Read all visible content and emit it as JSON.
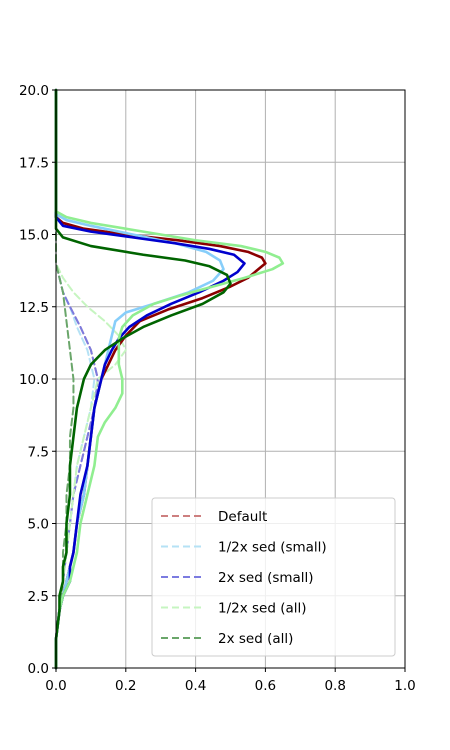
{
  "chart_data": {
    "type": "line",
    "title": "",
    "xlabel": "",
    "ylabel": "",
    "xlim": [
      0.0,
      1.0
    ],
    "ylim": [
      0.0,
      20.0
    ],
    "grid": true,
    "legend_placement": "lower-right",
    "x_ticks": [
      {
        "value": 0.0,
        "label": "0.0"
      },
      {
        "value": 0.2,
        "label": "0.2"
      },
      {
        "value": 0.4,
        "label": "0.4"
      },
      {
        "value": 0.6,
        "label": "0.6"
      },
      {
        "value": 0.8,
        "label": "0.8"
      },
      {
        "value": 1.0,
        "label": "1.0"
      }
    ],
    "y_ticks": [
      {
        "value": 0.0,
        "label": "0.0"
      },
      {
        "value": 2.5,
        "label": "2.5"
      },
      {
        "value": 5.0,
        "label": "5.0"
      },
      {
        "value": 7.5,
        "label": "7.5"
      },
      {
        "value": 10.0,
        "label": "10.0"
      },
      {
        "value": 12.5,
        "label": "12.5"
      },
      {
        "value": 15.0,
        "label": "15.0"
      },
      {
        "value": 17.5,
        "label": "17.5"
      },
      {
        "value": 20.0,
        "label": "20.0"
      }
    ],
    "series": [
      {
        "name": "",
        "style": "dashed",
        "color": "#cd7f7f",
        "alpha": 1.0,
        "points": [
          [
            0.0,
            20.0
          ],
          [
            0.0,
            14.0
          ],
          [
            0.01,
            13.5
          ],
          [
            0.02,
            13.0
          ],
          [
            0.04,
            12.5
          ],
          [
            0.07,
            11.8
          ],
          [
            0.1,
            11.0
          ],
          [
            0.12,
            10.0
          ],
          [
            0.11,
            9.0
          ],
          [
            0.09,
            8.0
          ],
          [
            0.07,
            7.0
          ],
          [
            0.05,
            6.0
          ],
          [
            0.04,
            5.0
          ],
          [
            0.03,
            4.0
          ],
          [
            0.02,
            3.0
          ],
          [
            0.01,
            2.0
          ],
          [
            0.0,
            1.0
          ],
          [
            0.0,
            0.0
          ]
        ]
      },
      {
        "name": "",
        "style": "dashed",
        "color": "#b5e2f5",
        "alpha": 1.0,
        "points": [
          [
            0.0,
            20.0
          ],
          [
            0.0,
            14.0
          ],
          [
            0.01,
            13.5
          ],
          [
            0.02,
            13.0
          ],
          [
            0.04,
            12.5
          ],
          [
            0.06,
            11.8
          ],
          [
            0.09,
            11.0
          ],
          [
            0.11,
            10.0
          ],
          [
            0.1,
            9.0
          ],
          [
            0.08,
            8.0
          ],
          [
            0.06,
            7.0
          ],
          [
            0.05,
            6.0
          ],
          [
            0.04,
            5.0
          ],
          [
            0.03,
            4.0
          ],
          [
            0.02,
            3.0
          ],
          [
            0.01,
            2.0
          ],
          [
            0.0,
            1.0
          ],
          [
            0.0,
            0.0
          ]
        ]
      },
      {
        "name": "",
        "style": "dashed",
        "color": "#7b7be0",
        "alpha": 1.0,
        "points": [
          [
            0.0,
            20.0
          ],
          [
            0.0,
            14.0
          ],
          [
            0.01,
            13.5
          ],
          [
            0.02,
            13.0
          ],
          [
            0.04,
            12.5
          ],
          [
            0.07,
            11.8
          ],
          [
            0.1,
            11.0
          ],
          [
            0.12,
            10.0
          ],
          [
            0.11,
            9.0
          ],
          [
            0.09,
            8.0
          ],
          [
            0.07,
            7.0
          ],
          [
            0.05,
            6.0
          ],
          [
            0.04,
            5.0
          ],
          [
            0.03,
            4.0
          ],
          [
            0.02,
            3.0
          ],
          [
            0.01,
            2.0
          ],
          [
            0.0,
            1.0
          ],
          [
            0.0,
            0.0
          ]
        ]
      },
      {
        "name": "",
        "style": "dashed",
        "color": "#c6f5c0",
        "alpha": 1.0,
        "points": [
          [
            0.0,
            20.0
          ],
          [
            0.0,
            14.0
          ],
          [
            0.02,
            13.5
          ],
          [
            0.05,
            13.0
          ],
          [
            0.09,
            12.5
          ],
          [
            0.14,
            12.0
          ],
          [
            0.18,
            11.5
          ],
          [
            0.2,
            11.0
          ],
          [
            0.17,
            10.5
          ],
          [
            0.12,
            10.0
          ],
          [
            0.1,
            9.0
          ],
          [
            0.08,
            8.0
          ],
          [
            0.06,
            7.0
          ],
          [
            0.05,
            6.0
          ],
          [
            0.04,
            5.0
          ],
          [
            0.03,
            4.0
          ],
          [
            0.02,
            3.0
          ],
          [
            0.01,
            2.0
          ],
          [
            0.0,
            1.0
          ],
          [
            0.0,
            0.0
          ]
        ]
      },
      {
        "name": "",
        "style": "dashed",
        "color": "#6aa66a",
        "alpha": 1.0,
        "points": [
          [
            0.0,
            20.0
          ],
          [
            0.0,
            14.0
          ],
          [
            0.01,
            13.5
          ],
          [
            0.02,
            13.0
          ],
          [
            0.03,
            12.0
          ],
          [
            0.04,
            11.0
          ],
          [
            0.05,
            10.0
          ],
          [
            0.05,
            9.0
          ],
          [
            0.04,
            8.0
          ],
          [
            0.04,
            7.0
          ],
          [
            0.03,
            6.0
          ],
          [
            0.03,
            5.0
          ],
          [
            0.02,
            4.0
          ],
          [
            0.02,
            3.0
          ],
          [
            0.01,
            2.0
          ],
          [
            0.0,
            1.0
          ],
          [
            0.0,
            0.0
          ]
        ]
      },
      {
        "name": "",
        "style": "solid",
        "color": "#8b0000",
        "alpha": 1.0,
        "points": [
          [
            0.0,
            20.0
          ],
          [
            0.0,
            15.6
          ],
          [
            0.02,
            15.4
          ],
          [
            0.08,
            15.2
          ],
          [
            0.2,
            15.0
          ],
          [
            0.35,
            14.8
          ],
          [
            0.47,
            14.6
          ],
          [
            0.55,
            14.4
          ],
          [
            0.59,
            14.2
          ],
          [
            0.6,
            14.0
          ],
          [
            0.58,
            13.8
          ],
          [
            0.55,
            13.5
          ],
          [
            0.5,
            13.2
          ],
          [
            0.42,
            12.8
          ],
          [
            0.32,
            12.4
          ],
          [
            0.24,
            12.0
          ],
          [
            0.2,
            11.5
          ],
          [
            0.17,
            11.0
          ],
          [
            0.15,
            10.5
          ],
          [
            0.13,
            10.0
          ],
          [
            0.12,
            9.5
          ],
          [
            0.11,
            9.0
          ],
          [
            0.1,
            8.0
          ],
          [
            0.09,
            7.0
          ],
          [
            0.08,
            6.0
          ],
          [
            0.06,
            5.0
          ],
          [
            0.05,
            4.0
          ],
          [
            0.04,
            3.5
          ],
          [
            0.03,
            3.0
          ],
          [
            0.02,
            2.5
          ],
          [
            0.01,
            2.0
          ],
          [
            0.0,
            1.0
          ],
          [
            0.0,
            0.0
          ]
        ]
      },
      {
        "name": "",
        "style": "solid",
        "color": "#87cefa",
        "alpha": 1.0,
        "points": [
          [
            0.0,
            20.0
          ],
          [
            0.0,
            15.7
          ],
          [
            0.03,
            15.5
          ],
          [
            0.1,
            15.3
          ],
          [
            0.22,
            15.0
          ],
          [
            0.34,
            14.7
          ],
          [
            0.43,
            14.4
          ],
          [
            0.47,
            14.1
          ],
          [
            0.48,
            13.8
          ],
          [
            0.45,
            13.4
          ],
          [
            0.38,
            13.0
          ],
          [
            0.28,
            12.6
          ],
          [
            0.2,
            12.3
          ],
          [
            0.17,
            12.0
          ],
          [
            0.16,
            11.5
          ],
          [
            0.15,
            11.0
          ],
          [
            0.14,
            10.5
          ],
          [
            0.13,
            10.0
          ],
          [
            0.12,
            9.5
          ],
          [
            0.11,
            9.0
          ],
          [
            0.1,
            8.0
          ],
          [
            0.09,
            7.0
          ],
          [
            0.08,
            6.0
          ],
          [
            0.06,
            5.0
          ],
          [
            0.05,
            4.0
          ],
          [
            0.04,
            3.5
          ],
          [
            0.03,
            3.0
          ],
          [
            0.02,
            2.5
          ],
          [
            0.01,
            2.0
          ],
          [
            0.0,
            1.0
          ],
          [
            0.0,
            0.0
          ]
        ]
      },
      {
        "name": "",
        "style": "solid",
        "color": "#0000cd",
        "alpha": 1.0,
        "points": [
          [
            0.0,
            20.0
          ],
          [
            0.0,
            15.6
          ],
          [
            0.02,
            15.3
          ],
          [
            0.1,
            15.1
          ],
          [
            0.22,
            14.9
          ],
          [
            0.34,
            14.7
          ],
          [
            0.44,
            14.5
          ],
          [
            0.51,
            14.3
          ],
          [
            0.54,
            14.0
          ],
          [
            0.52,
            13.7
          ],
          [
            0.48,
            13.4
          ],
          [
            0.41,
            13.0
          ],
          [
            0.33,
            12.6
          ],
          [
            0.26,
            12.2
          ],
          [
            0.21,
            11.8
          ],
          [
            0.18,
            11.4
          ],
          [
            0.16,
            11.0
          ],
          [
            0.14,
            10.5
          ],
          [
            0.13,
            10.0
          ],
          [
            0.12,
            9.5
          ],
          [
            0.11,
            9.0
          ],
          [
            0.1,
            8.0
          ],
          [
            0.09,
            7.0
          ],
          [
            0.07,
            6.0
          ],
          [
            0.06,
            5.0
          ],
          [
            0.05,
            4.0
          ],
          [
            0.04,
            3.5
          ],
          [
            0.04,
            3.0
          ],
          [
            0.02,
            2.5
          ],
          [
            0.01,
            2.0
          ],
          [
            0.0,
            1.0
          ],
          [
            0.0,
            0.0
          ]
        ]
      },
      {
        "name": "",
        "style": "solid",
        "color": "#90ee90",
        "alpha": 1.0,
        "points": [
          [
            0.0,
            20.0
          ],
          [
            0.0,
            15.8
          ],
          [
            0.03,
            15.6
          ],
          [
            0.1,
            15.4
          ],
          [
            0.25,
            15.1
          ],
          [
            0.4,
            14.8
          ],
          [
            0.53,
            14.6
          ],
          [
            0.6,
            14.4
          ],
          [
            0.64,
            14.2
          ],
          [
            0.65,
            14.0
          ],
          [
            0.62,
            13.8
          ],
          [
            0.54,
            13.5
          ],
          [
            0.45,
            13.2
          ],
          [
            0.36,
            12.9
          ],
          [
            0.28,
            12.6
          ],
          [
            0.22,
            12.2
          ],
          [
            0.19,
            11.8
          ],
          [
            0.18,
            11.4
          ],
          [
            0.18,
            11.0
          ],
          [
            0.18,
            10.5
          ],
          [
            0.19,
            10.0
          ],
          [
            0.19,
            9.5
          ],
          [
            0.17,
            9.0
          ],
          [
            0.14,
            8.5
          ],
          [
            0.12,
            8.0
          ],
          [
            0.11,
            7.0
          ],
          [
            0.09,
            6.0
          ],
          [
            0.07,
            5.0
          ],
          [
            0.06,
            4.0
          ],
          [
            0.05,
            3.5
          ],
          [
            0.04,
            3.0
          ],
          [
            0.02,
            2.5
          ],
          [
            0.01,
            2.0
          ],
          [
            0.0,
            1.0
          ],
          [
            0.0,
            0.0
          ]
        ]
      },
      {
        "name": "",
        "style": "solid",
        "color": "#006400",
        "alpha": 1.0,
        "points": [
          [
            0.0,
            20.0
          ],
          [
            0.0,
            15.2
          ],
          [
            0.02,
            14.9
          ],
          [
            0.1,
            14.6
          ],
          [
            0.25,
            14.3
          ],
          [
            0.37,
            14.1
          ],
          [
            0.44,
            13.9
          ],
          [
            0.49,
            13.6
          ],
          [
            0.5,
            13.3
          ],
          [
            0.48,
            13.0
          ],
          [
            0.42,
            12.6
          ],
          [
            0.33,
            12.2
          ],
          [
            0.25,
            11.8
          ],
          [
            0.19,
            11.4
          ],
          [
            0.14,
            11.0
          ],
          [
            0.1,
            10.5
          ],
          [
            0.08,
            10.0
          ],
          [
            0.07,
            9.5
          ],
          [
            0.06,
            9.0
          ],
          [
            0.05,
            8.0
          ],
          [
            0.04,
            7.0
          ],
          [
            0.04,
            6.0
          ],
          [
            0.03,
            5.0
          ],
          [
            0.03,
            4.0
          ],
          [
            0.02,
            3.5
          ],
          [
            0.02,
            3.0
          ],
          [
            0.01,
            2.5
          ],
          [
            0.01,
            2.0
          ],
          [
            0.0,
            1.0
          ],
          [
            0.0,
            0.0
          ]
        ]
      }
    ],
    "legend": {
      "placement": "lower-right",
      "entries": [
        {
          "label": "Default",
          "color": "#cd7f7f",
          "style": "dashed"
        },
        {
          "label": "1/2x sed (small)",
          "color": "#b5e2f5",
          "style": "dashed"
        },
        {
          "label": "2x sed (small)",
          "color": "#7b7be0",
          "style": "dashed"
        },
        {
          "label": "1/2x sed (all)",
          "color": "#c6f5c0",
          "style": "dashed"
        },
        {
          "label": "2x sed (all)",
          "color": "#6aa66a",
          "style": "dashed"
        }
      ]
    }
  }
}
